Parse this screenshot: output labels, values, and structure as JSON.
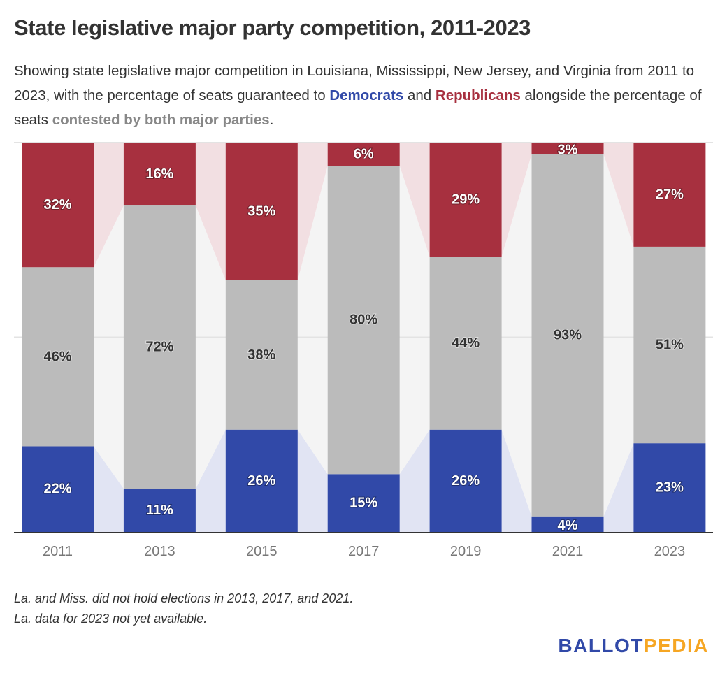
{
  "header": {
    "title": "State legislative major party competition, 2011-2023",
    "subtitle_parts": {
      "p1": "Showing state legislative major competition in Louisiana, Mississippi, New Jersey, and Virginia from 2011 to 2023, with the percentage of seats guaranteed to ",
      "dem": "Democrats",
      "p2": " and ",
      "rep": "Republicans",
      "p3": " alongside the percentage of seats ",
      "con": "contested by both major parties",
      "p4": "."
    }
  },
  "notes": {
    "line1": "La. and Miss. did not hold elections in 2013, 2017, and 2021.",
    "line2": "La. data for 2023 not yet available."
  },
  "logo": {
    "part1": "BALLOT",
    "part2": "PEDIA"
  },
  "colors": {
    "democrats": "#3149a8",
    "republicans": "#a7303f",
    "contested": "#bbbbbb",
    "dem_band": "#e1e4f3",
    "rep_band": "#f2dfe2",
    "con_band": "#f4f4f4"
  },
  "chart_data": {
    "type": "bar",
    "stacked": true,
    "normalized": true,
    "title": "State legislative major party competition, 2011-2023",
    "xlabel": "",
    "ylabel": "",
    "ylim": [
      0,
      100
    ],
    "grid": true,
    "categories": [
      "2011",
      "2013",
      "2015",
      "2017",
      "2019",
      "2021",
      "2023"
    ],
    "series": [
      {
        "name": "Democrats",
        "values": [
          22,
          11,
          26,
          15,
          26,
          4,
          23
        ]
      },
      {
        "name": "Contested by both major parties",
        "values": [
          46,
          72,
          38,
          80,
          44,
          93,
          51
        ]
      },
      {
        "name": "Republicans",
        "values": [
          32,
          16,
          35,
          6,
          29,
          3,
          27
        ]
      }
    ],
    "value_suffix": "%"
  }
}
